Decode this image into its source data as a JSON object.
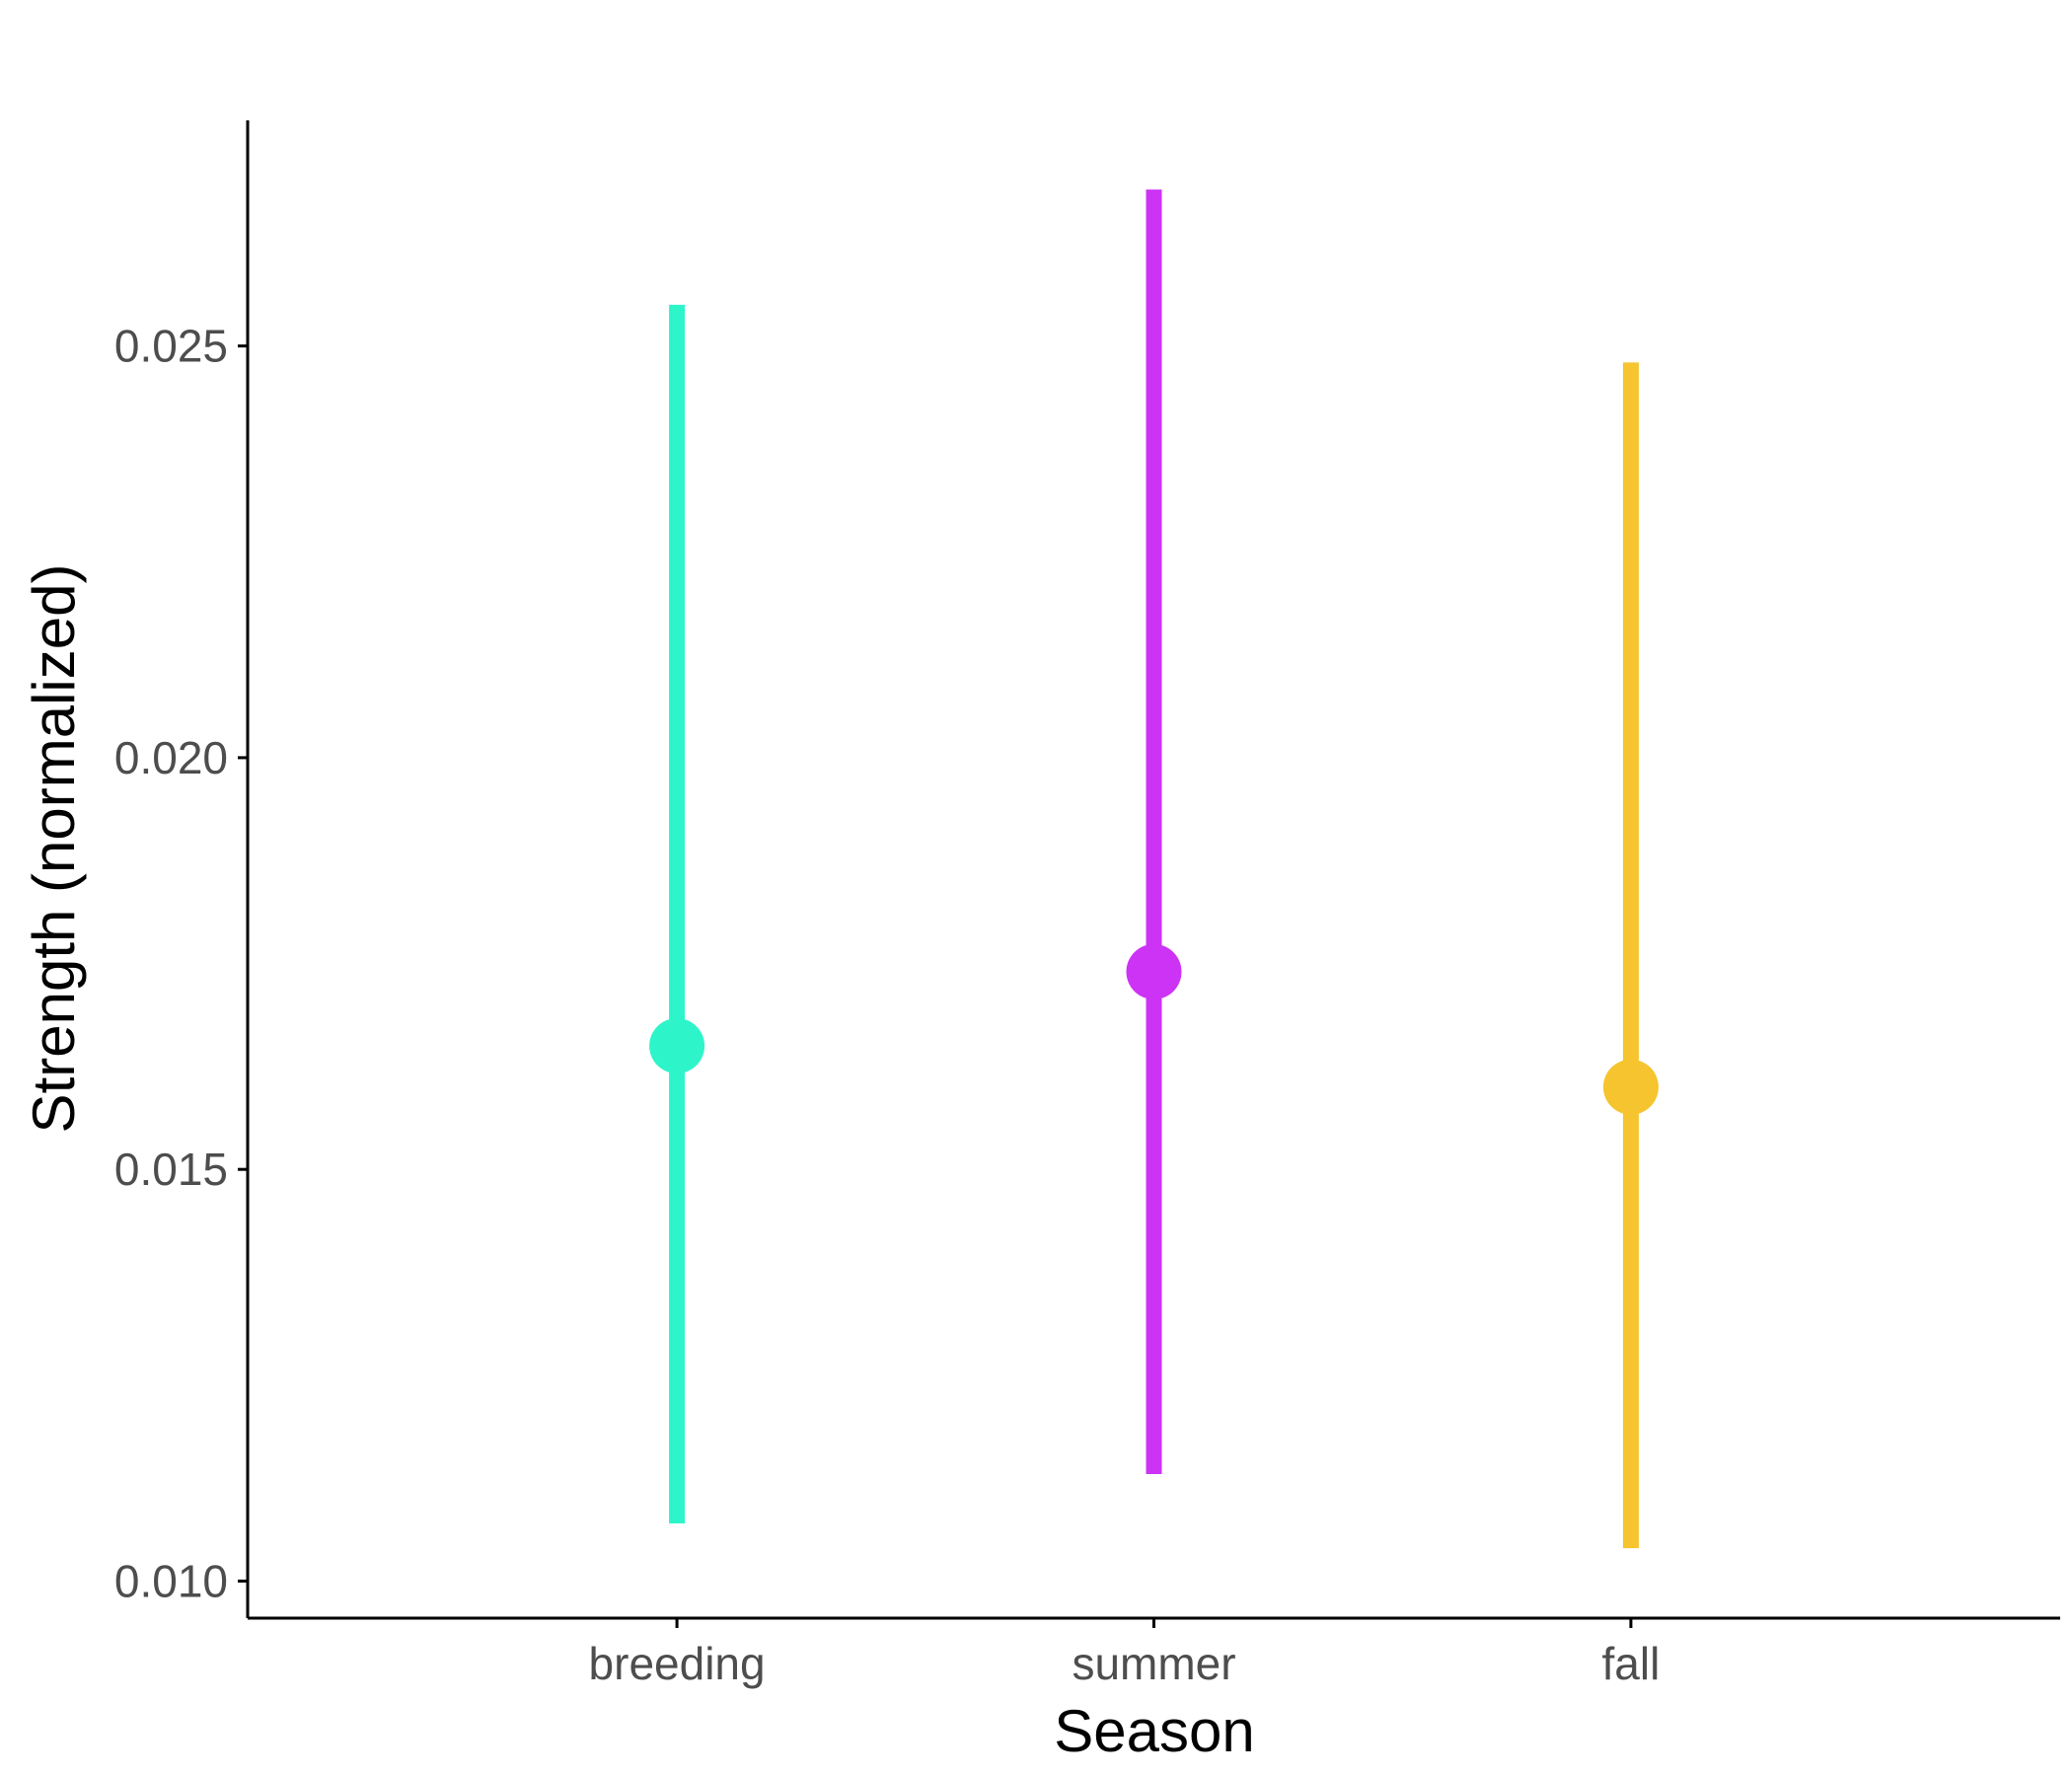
{
  "chart_data": {
    "type": "pointrange",
    "title": "",
    "xlabel": "Season",
    "ylabel": "Strength (normalized)",
    "categories": [
      "breeding",
      "summer",
      "fall"
    ],
    "estimates": [
      0.0165,
      0.0174,
      0.016
    ],
    "lower": [
      0.0107,
      0.0113,
      0.0104
    ],
    "upper": [
      0.0255,
      0.0269,
      0.0248
    ],
    "colors": [
      "#2EF5C9",
      "#CC33F5",
      "#F5C42E"
    ],
    "yticks": [
      0.01,
      0.015,
      0.02,
      0.025
    ],
    "ytick_labels": [
      "0.010",
      "0.015",
      "0.020",
      "0.025"
    ],
    "ylim": [
      0.00955,
      0.02774
    ],
    "grid": false,
    "legend": "none",
    "axis_color": "#000000",
    "tick_label_color": "#4d4d4d"
  }
}
